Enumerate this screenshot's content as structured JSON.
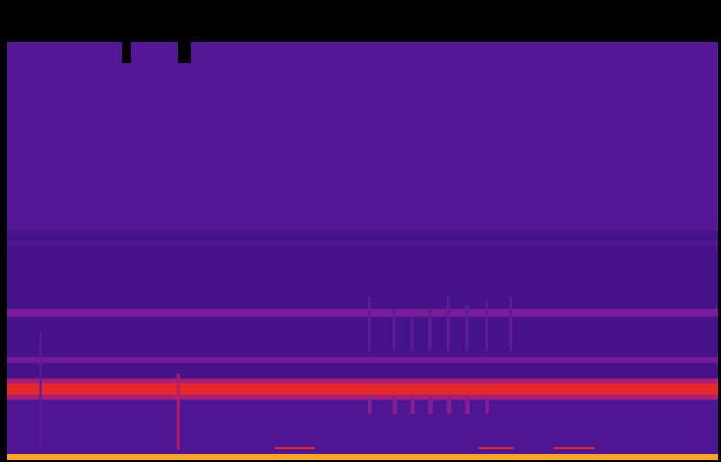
{
  "chart_data": {
    "type": "heatmap",
    "tick_labels": false,
    "xlim": [
      0,
      100
    ],
    "ylim": [
      0,
      100
    ],
    "color_range": [
      0,
      1
    ],
    "bands": [
      {
        "y": [
          0,
          100
        ],
        "value": 0.38
      },
      {
        "y": [
          55,
          100
        ],
        "value": 0.43
      },
      {
        "y": [
          51.3,
          52.5
        ],
        "value": 0.42
      },
      {
        "y": [
          34.3,
          36.2
        ],
        "value": 0.5
      },
      {
        "y": [
          1.5,
          14.5
        ],
        "value": 0.41
      },
      {
        "y": [
          23.2,
          24.8
        ],
        "value": 0.49
      },
      {
        "y": [
          14.5,
          19.5
        ],
        "value": 0.58
      },
      {
        "y": [
          15.6,
          18.4
        ],
        "value": 0.72
      },
      {
        "y": [
          0,
          1.5
        ],
        "value": 0.88
      }
    ],
    "events": [
      {
        "x": [
          4.5,
          4.9
        ],
        "y": [
          2.4,
          30.4
        ],
        "value": 0.46
      },
      {
        "x": [
          23.8,
          24.3
        ],
        "y": [
          2.4,
          20.7
        ],
        "value": 0.6
      },
      {
        "x": [
          50.7,
          51.1
        ],
        "y": [
          26.1,
          39.0
        ],
        "value": 0.46
      },
      {
        "x": [
          54.2,
          54.6
        ],
        "y": [
          26.1,
          36.0
        ],
        "value": 0.46
      },
      {
        "x": [
          56.7,
          57.1
        ],
        "y": [
          26.1,
          34.0
        ],
        "value": 0.46
      },
      {
        "x": [
          59.2,
          59.6
        ],
        "y": [
          26.1,
          36.0
        ],
        "value": 0.46
      },
      {
        "x": [
          61.8,
          62.2
        ],
        "y": [
          26.1,
          39.0
        ],
        "value": 0.46
      },
      {
        "x": [
          64.4,
          64.8
        ],
        "y": [
          26.1,
          37.0
        ],
        "value": 0.46
      },
      {
        "x": [
          67.2,
          67.6
        ],
        "y": [
          26.1,
          38.0
        ],
        "value": 0.46
      },
      {
        "x": [
          70.6,
          71.0
        ],
        "y": [
          26.1,
          39.0
        ],
        "value": 0.46
      },
      {
        "x": [
          50.7,
          51.3
        ],
        "y": [
          11.0,
          15.3
        ],
        "value": 0.52
      },
      {
        "x": [
          54.2,
          54.8
        ],
        "y": [
          11.0,
          15.3
        ],
        "value": 0.52
      },
      {
        "x": [
          56.7,
          57.3
        ],
        "y": [
          11.0,
          15.3
        ],
        "value": 0.52
      },
      {
        "x": [
          59.2,
          59.8
        ],
        "y": [
          11.0,
          15.3
        ],
        "value": 0.52
      },
      {
        "x": [
          61.8,
          62.4
        ],
        "y": [
          11.0,
          15.3
        ],
        "value": 0.52
      },
      {
        "x": [
          64.4,
          65.0
        ],
        "y": [
          11.0,
          15.3
        ],
        "value": 0.52
      },
      {
        "x": [
          67.2,
          67.8
        ],
        "y": [
          11.0,
          15.3
        ],
        "value": 0.52
      },
      {
        "x": [
          37.6,
          43.3
        ],
        "y": [
          2.6,
          3.2
        ],
        "value": 0.75
      },
      {
        "x": [
          66.2,
          71.2
        ],
        "y": [
          2.6,
          3.2
        ],
        "value": 0.75
      },
      {
        "x": [
          76.9,
          82.6
        ],
        "y": [
          2.6,
          3.2
        ],
        "value": 0.75
      }
    ]
  }
}
